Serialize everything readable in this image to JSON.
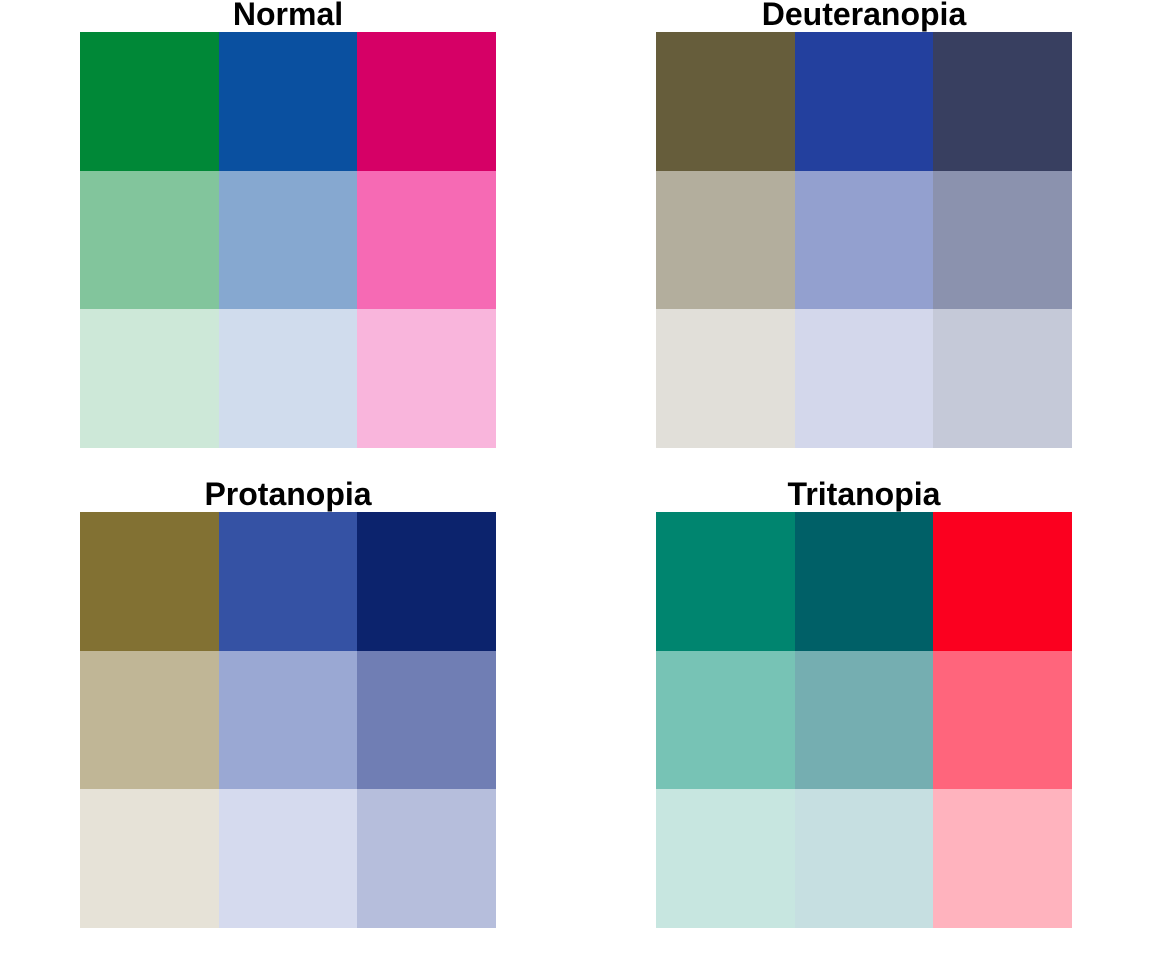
{
  "chart_data": [
    {
      "type": "heatmap",
      "title": "Normal",
      "rows": 3,
      "cols": 3,
      "colors": [
        [
          "#008837",
          "#0a50a0",
          "#d60066"
        ],
        [
          "#82c59c",
          "#86a8d0",
          "#f66ab4"
        ],
        [
          "#cde8d8",
          "#d0dced",
          "#f9b5dc"
        ]
      ]
    },
    {
      "type": "heatmap",
      "title": "Deuteranopia",
      "rows": 3,
      "cols": 3,
      "colors": [
        [
          "#665d3b",
          "#23409e",
          "#383f60"
        ],
        [
          "#b3ae9d",
          "#93a0cf",
          "#8b92ae"
        ],
        [
          "#e1dfd9",
          "#d3d7eb",
          "#c5c9d8"
        ]
      ]
    },
    {
      "type": "heatmap",
      "title": "Protanopia",
      "rows": 3,
      "cols": 3,
      "colors": [
        [
          "#827133",
          "#3552a4",
          "#0c236d"
        ],
        [
          "#c0b696",
          "#9aa8d3",
          "#707eb4"
        ],
        [
          "#e6e2d7",
          "#d5daee",
          "#b6bedc"
        ]
      ]
    },
    {
      "type": "heatmap",
      "title": "Tritanopia",
      "rows": 3,
      "cols": 3,
      "colors": [
        [
          "#00856f",
          "#006067",
          "#fb001f"
        ],
        [
          "#77c3b5",
          "#75aeb1",
          "#ff657c"
        ],
        [
          "#c7e6e0",
          "#c6dfe1",
          "#ffb3be"
        ]
      ]
    }
  ]
}
